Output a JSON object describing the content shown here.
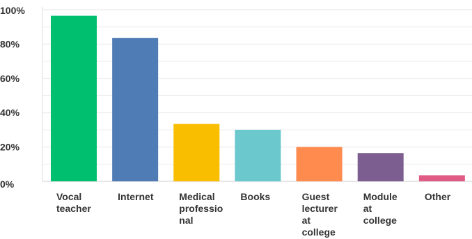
{
  "chart_data": {
    "type": "bar",
    "title": "",
    "xlabel": "",
    "ylabel": "",
    "ylim": [
      0,
      100
    ],
    "y_ticks": [
      "0%",
      "20%",
      "40%",
      "60%",
      "80%",
      "100%"
    ],
    "grid": true,
    "categories": [
      {
        "label_lines": [
          "Vocal",
          "teacher"
        ],
        "value": 96.5,
        "color": "#00bf6f"
      },
      {
        "label_lines": [
          "Internet"
        ],
        "value": 83.5,
        "color": "#507cb6"
      },
      {
        "label_lines": [
          "Medical",
          "professio",
          "nal"
        ],
        "value": 33.5,
        "color": "#f9be00"
      },
      {
        "label_lines": [
          "Books"
        ],
        "value": 30,
        "color": "#6bc8cd"
      },
      {
        "label_lines": [
          "Guest",
          "lecturer",
          "at",
          "college"
        ],
        "value": 20,
        "color": "#ff8b4f"
      },
      {
        "label_lines": [
          "Module",
          "at",
          "college"
        ],
        "value": 16.5,
        "color": "#7d5e90"
      },
      {
        "label_lines": [
          "Other"
        ],
        "value": 3.5,
        "color": "#e05c86"
      }
    ]
  }
}
